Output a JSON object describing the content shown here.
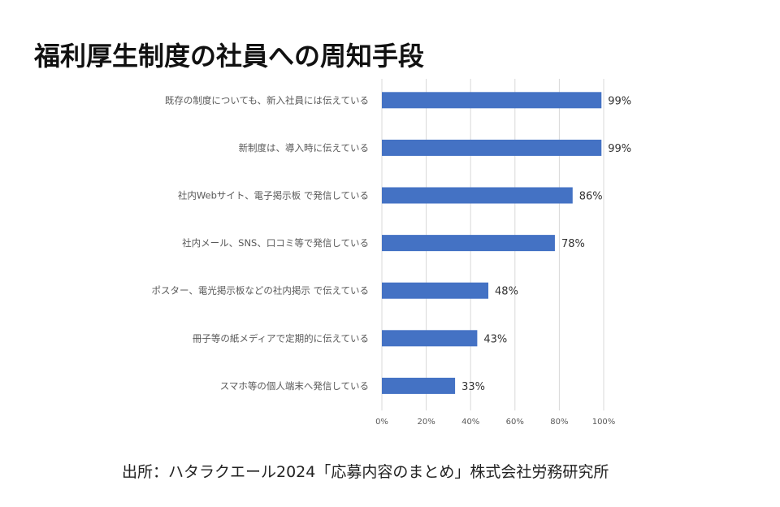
{
  "title": "福利厚生制度の社員への周知手段",
  "source": "出所：ハタラクエール2024「応募内容のまとめ」株式会社労務研究所",
  "colors": {
    "bar": "#4472C4",
    "grid": "#d9d9d9",
    "text": "#595959"
  },
  "chart_data": {
    "type": "bar",
    "orientation": "horizontal",
    "title": "福利厚生制度の社員への周知手段",
    "categories": [
      "既存の制度についても、新入社員には伝えている",
      "新制度は、導入時に伝えている",
      "社内Webサイト、電子掲示板  で発信している",
      "社内メール、SNS、口コミ等で発信している",
      "ポスター、電光掲示板などの社内掲示  で伝えている",
      "冊子等の紙メディアで定期的に伝えている",
      "スマホ等の個人端末へ発信している"
    ],
    "values": [
      99,
      99,
      86,
      78,
      48,
      43,
      33
    ],
    "data_labels": [
      "99%",
      "99%",
      "86%",
      "78%",
      "48%",
      "43%",
      "33%"
    ],
    "xlim": [
      0,
      100
    ],
    "xticks": [
      0,
      20,
      40,
      60,
      80,
      100
    ],
    "xtick_labels": [
      "0%",
      "20%",
      "40%",
      "60%",
      "80%",
      "100%"
    ],
    "xlabel": "",
    "ylabel": "",
    "grid": true,
    "legend": "none"
  }
}
